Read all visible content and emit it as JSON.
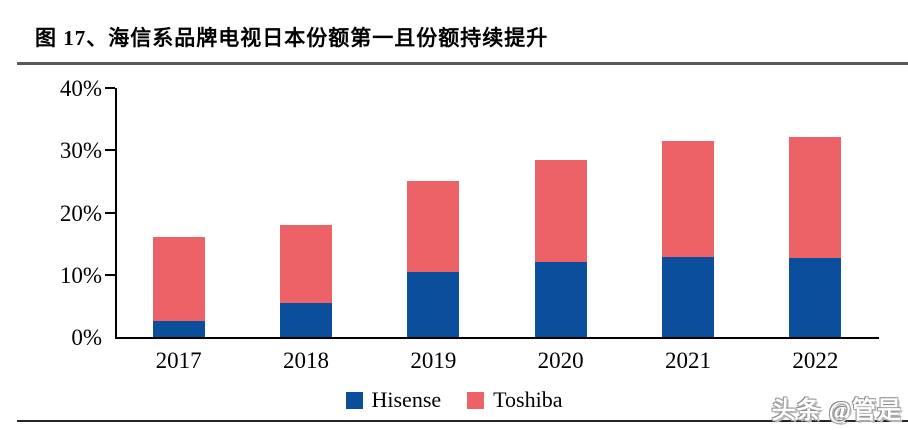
{
  "figure": {
    "title": "图 17、海信系品牌电视日本份额第一且份额持续提升"
  },
  "watermark": "头条 @管是",
  "colors": {
    "hisense_blue": "#0B4E9B",
    "toshiba_red": "#EC6266",
    "axis_black": "#000000",
    "top_rule_gray": "#595959",
    "bottom_rule_dark": "#262626"
  },
  "chart_data": {
    "type": "bar",
    "stacked": true,
    "title": "图 17、海信系品牌电视日本份额第一且份额持续提升",
    "categories": [
      "2017",
      "2018",
      "2019",
      "2020",
      "2021",
      "2022"
    ],
    "series": [
      {
        "name": "Hisense",
        "color": "#0B4E9B",
        "values": [
          2.5,
          5.5,
          10.5,
          12.0,
          12.8,
          12.7
        ]
      },
      {
        "name": "Toshiba",
        "color": "#EC6266",
        "values": [
          13.5,
          12.5,
          14.5,
          16.5,
          18.7,
          19.4
        ]
      }
    ],
    "totals": [
      16.0,
      18.0,
      25.0,
      28.5,
      31.5,
      32.1
    ],
    "xlabel": "",
    "ylabel": "",
    "ylim": [
      0,
      40
    ],
    "yticks": [
      "0%",
      "10%",
      "20%",
      "30%",
      "40%"
    ],
    "grid": false,
    "legend_position": "bottom"
  }
}
